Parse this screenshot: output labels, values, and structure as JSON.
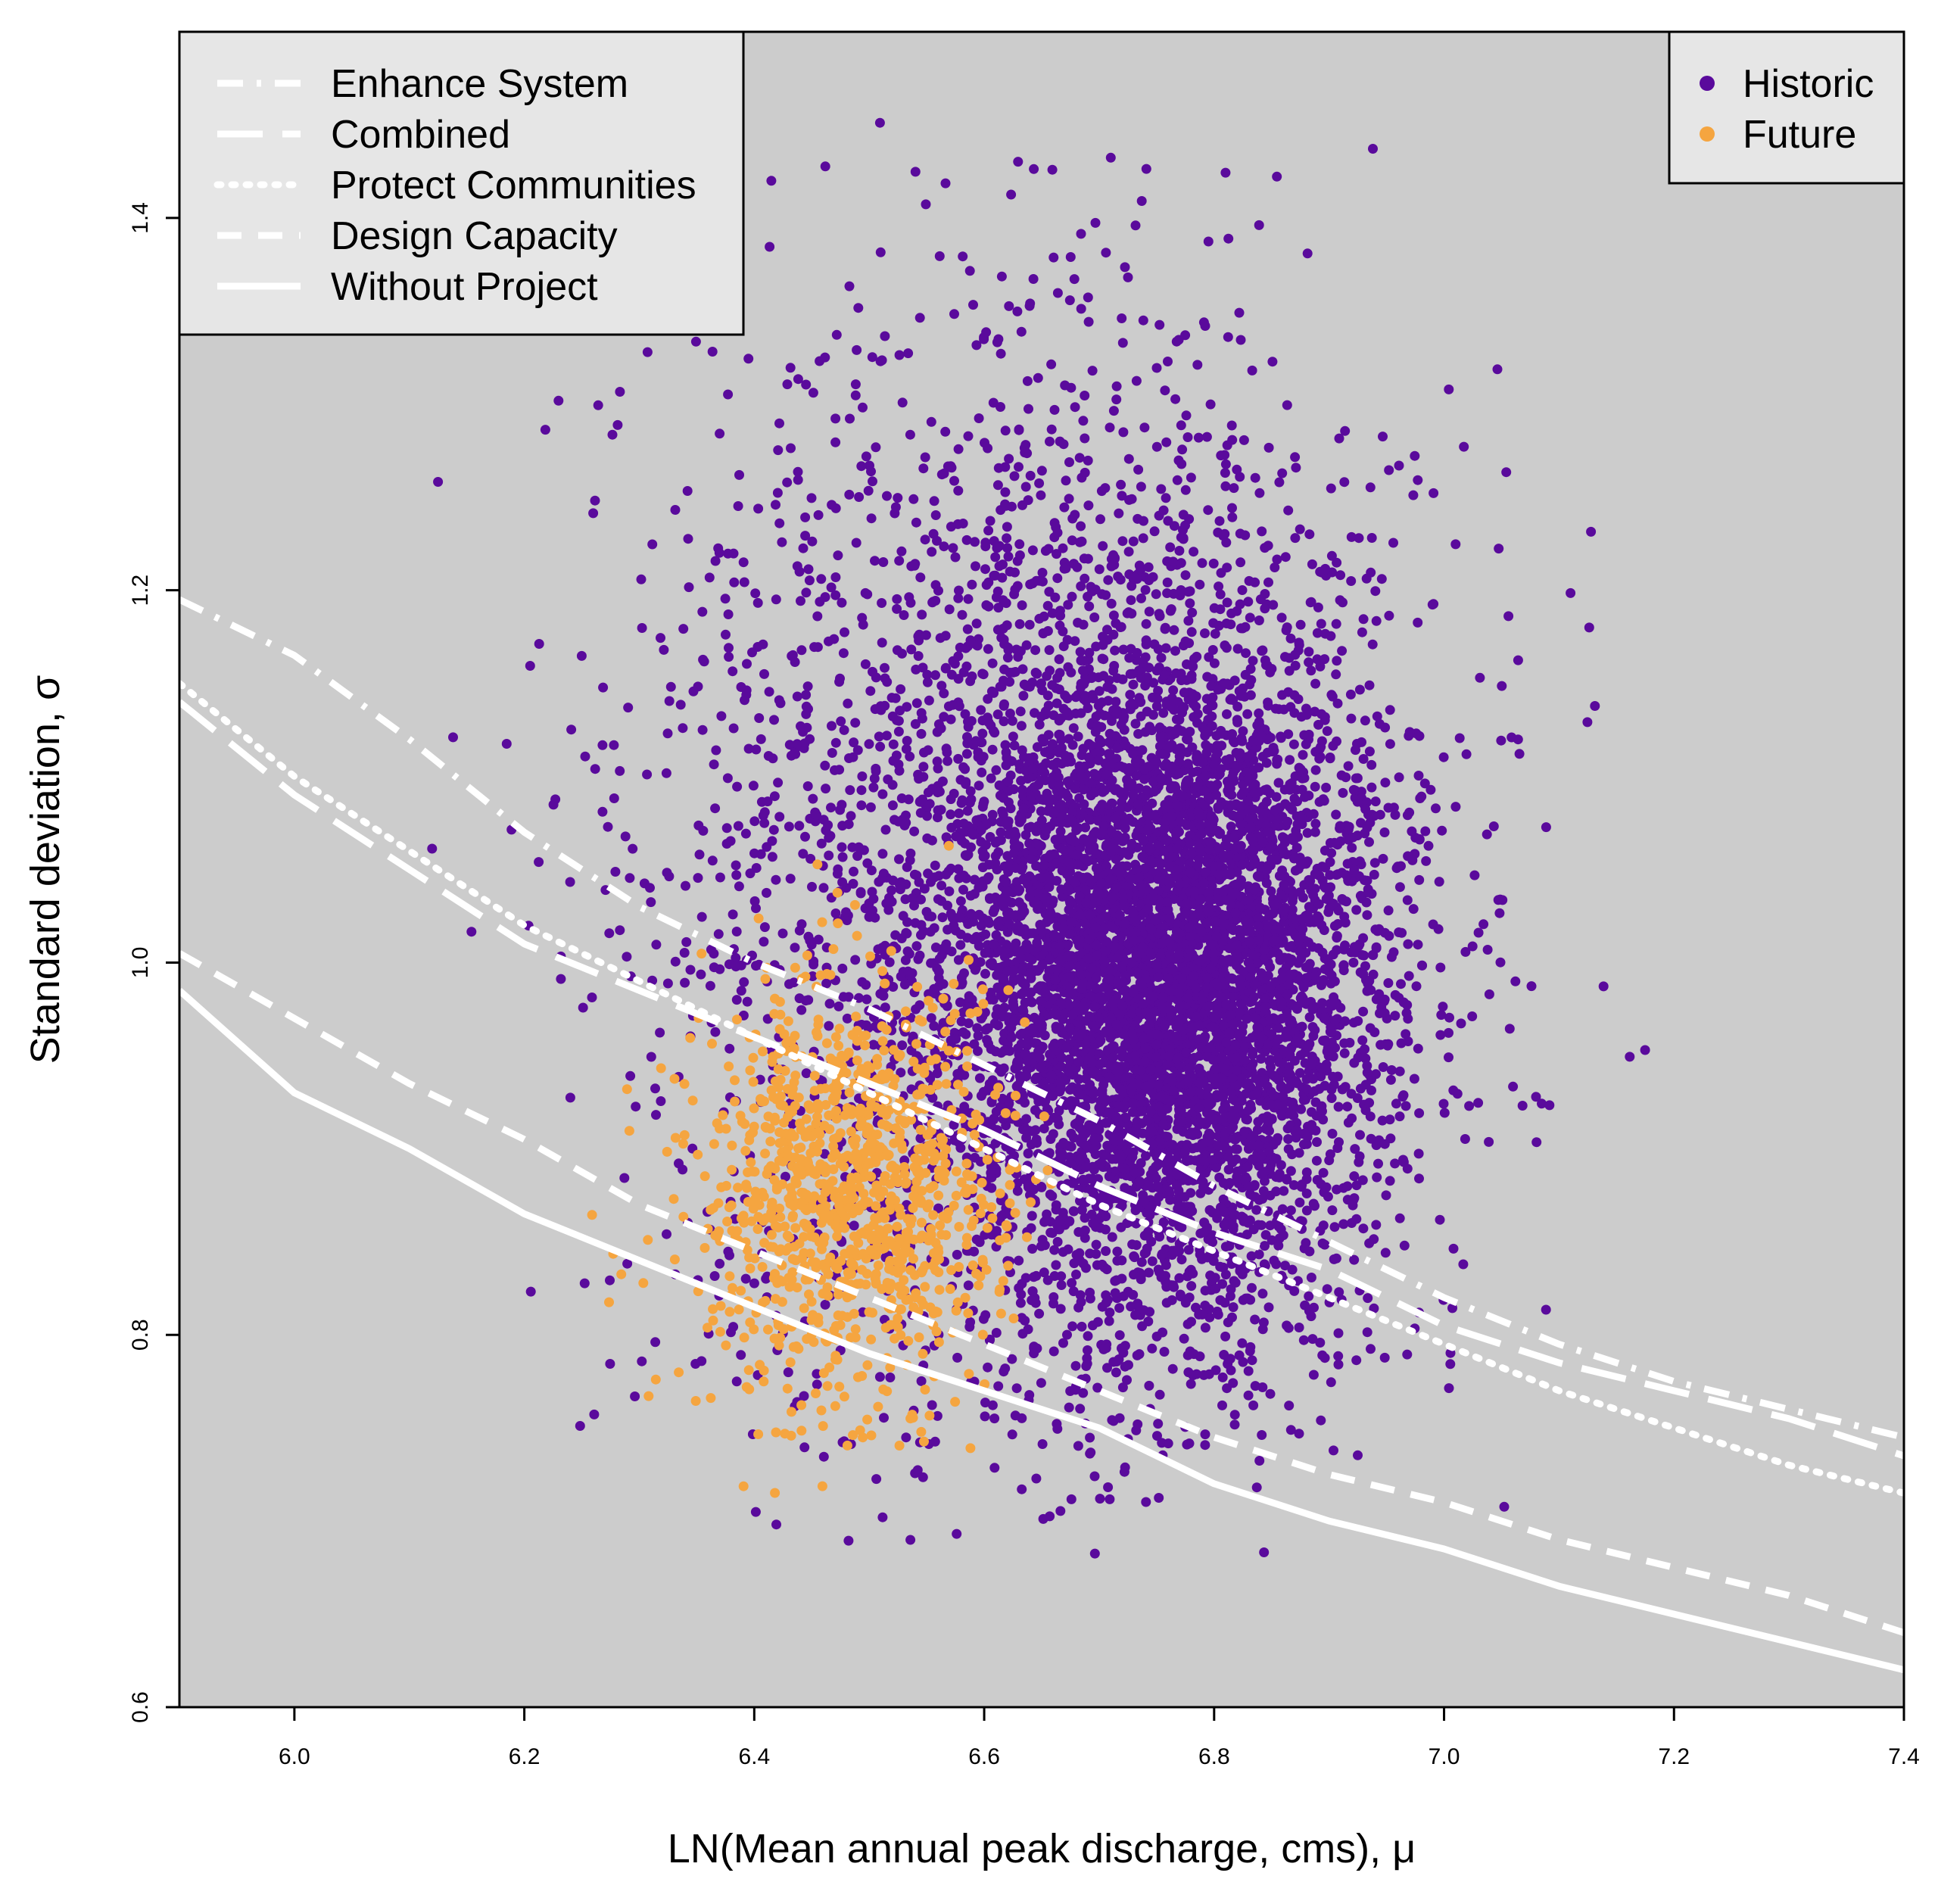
{
  "chart_data": {
    "type": "scatter",
    "title": "",
    "xlabel": "LN(Mean annual peak discharge, cms), μ",
    "ylabel": "Standard deviation, σ",
    "xlim": [
      5.9,
      7.4
    ],
    "ylim": [
      0.6,
      1.5
    ],
    "xticks": [
      6.0,
      6.2,
      6.4,
      6.6,
      6.8,
      7.0,
      7.2,
      7.4
    ],
    "xtick_labels": [
      "6.0",
      "6.2",
      "6.4",
      "6.6",
      "6.8",
      "7.0",
      "7.2",
      "7.4"
    ],
    "yticks": [
      0.6,
      0.8,
      1.0,
      1.2,
      1.4
    ],
    "ytick_labels": [
      "0.6",
      "0.8",
      "1.0",
      "1.2",
      "1.4"
    ],
    "background": "#cccccc",
    "line_color": "#ffffff",
    "colors": {
      "historic": "#5a0a9c",
      "future": "#f5a540"
    },
    "lines_legend": {
      "position": "top-left",
      "entries": [
        {
          "label": "Enhance System",
          "style": "dash-dot"
        },
        {
          "label": "Combined",
          "style": "long-dash"
        },
        {
          "label": "Protect Communities",
          "style": "dotted"
        },
        {
          "label": "Design Capacity",
          "style": "dashed"
        },
        {
          "label": "Without Project",
          "style": "solid"
        }
      ]
    },
    "points_legend": {
      "position": "top-right",
      "entries": [
        {
          "label": "Historic",
          "color": "#5a0a9c"
        },
        {
          "label": "Future",
          "color": "#f5a540"
        }
      ]
    },
    "scatter_series": [
      {
        "name": "Historic",
        "color": "#5a0a9c",
        "n": 8000,
        "clusters": [
          {
            "weight": 0.62,
            "mean": [
              6.76,
              0.99
            ],
            "sd": [
              0.09,
              0.085
            ]
          },
          {
            "weight": 0.38,
            "mean": [
              6.65,
              1.05
            ],
            "sd": [
              0.17,
              0.15
            ]
          }
        ],
        "bounds": {
          "x": [
            6.1,
            7.21
          ],
          "y": [
            0.68,
            1.46
          ]
        }
      },
      {
        "name": "Future",
        "color": "#f5a540",
        "n": 1100,
        "clusters": [
          {
            "weight": 1.0,
            "mean": [
              6.48,
              0.875
            ],
            "sd": [
              0.065,
              0.055
            ]
          }
        ],
        "bounds": {
          "x": [
            6.2,
            6.66
          ],
          "y": [
            0.7,
            1.13
          ]
        }
      }
    ],
    "line_series": [
      {
        "name": "Enhance System",
        "style": "dash-dot",
        "x": [
          5.9,
          6.0,
          6.1,
          6.2,
          6.3,
          6.4,
          6.5,
          6.6,
          6.7,
          6.8,
          6.9,
          7.0,
          7.1,
          7.2,
          7.3,
          7.4
        ],
        "y": [
          1.195,
          1.165,
          1.12,
          1.07,
          1.03,
          1.0,
          0.975,
          0.945,
          0.915,
          0.88,
          0.85,
          0.82,
          0.795,
          0.775,
          0.76,
          0.745
        ]
      },
      {
        "name": "Combined",
        "style": "long-dash",
        "x": [
          5.9,
          6.0,
          6.1,
          6.2,
          6.3,
          6.4,
          6.5,
          6.6,
          6.7,
          6.8,
          6.9,
          7.0,
          7.1,
          7.2,
          7.3,
          7.4
        ],
        "y": [
          1.14,
          1.09,
          1.05,
          1.01,
          0.985,
          0.96,
          0.935,
          0.91,
          0.88,
          0.855,
          0.835,
          0.805,
          0.785,
          0.77,
          0.755,
          0.735
        ]
      },
      {
        "name": "Protect Communities",
        "style": "dotted",
        "x": [
          5.9,
          6.0,
          6.1,
          6.2,
          6.3,
          6.4,
          6.5,
          6.6,
          6.7,
          6.8,
          6.9,
          7.0,
          7.1,
          7.2,
          7.3,
          7.4
        ],
        "y": [
          1.15,
          1.1,
          1.06,
          1.02,
          0.99,
          0.96,
          0.93,
          0.9,
          0.87,
          0.845,
          0.82,
          0.795,
          0.77,
          0.75,
          0.73,
          0.715
        ]
      },
      {
        "name": "Design Capacity",
        "style": "dashed",
        "x": [
          5.9,
          6.0,
          6.1,
          6.2,
          6.3,
          6.4,
          6.5,
          6.6,
          6.7,
          6.8,
          6.9,
          7.0,
          7.1,
          7.2,
          7.3,
          7.4
        ],
        "y": [
          1.005,
          0.97,
          0.935,
          0.905,
          0.87,
          0.845,
          0.82,
          0.795,
          0.77,
          0.745,
          0.725,
          0.71,
          0.69,
          0.675,
          0.66,
          0.64
        ]
      },
      {
        "name": "Without Project",
        "style": "solid",
        "x": [
          5.9,
          6.0,
          6.1,
          6.2,
          6.3,
          6.4,
          6.5,
          6.6,
          6.7,
          6.8,
          6.9,
          7.0,
          7.1,
          7.2,
          7.3,
          7.4
        ],
        "y": [
          0.985,
          0.93,
          0.9,
          0.865,
          0.84,
          0.815,
          0.79,
          0.77,
          0.75,
          0.72,
          0.7,
          0.685,
          0.665,
          0.65,
          0.635,
          0.62
        ]
      }
    ]
  }
}
